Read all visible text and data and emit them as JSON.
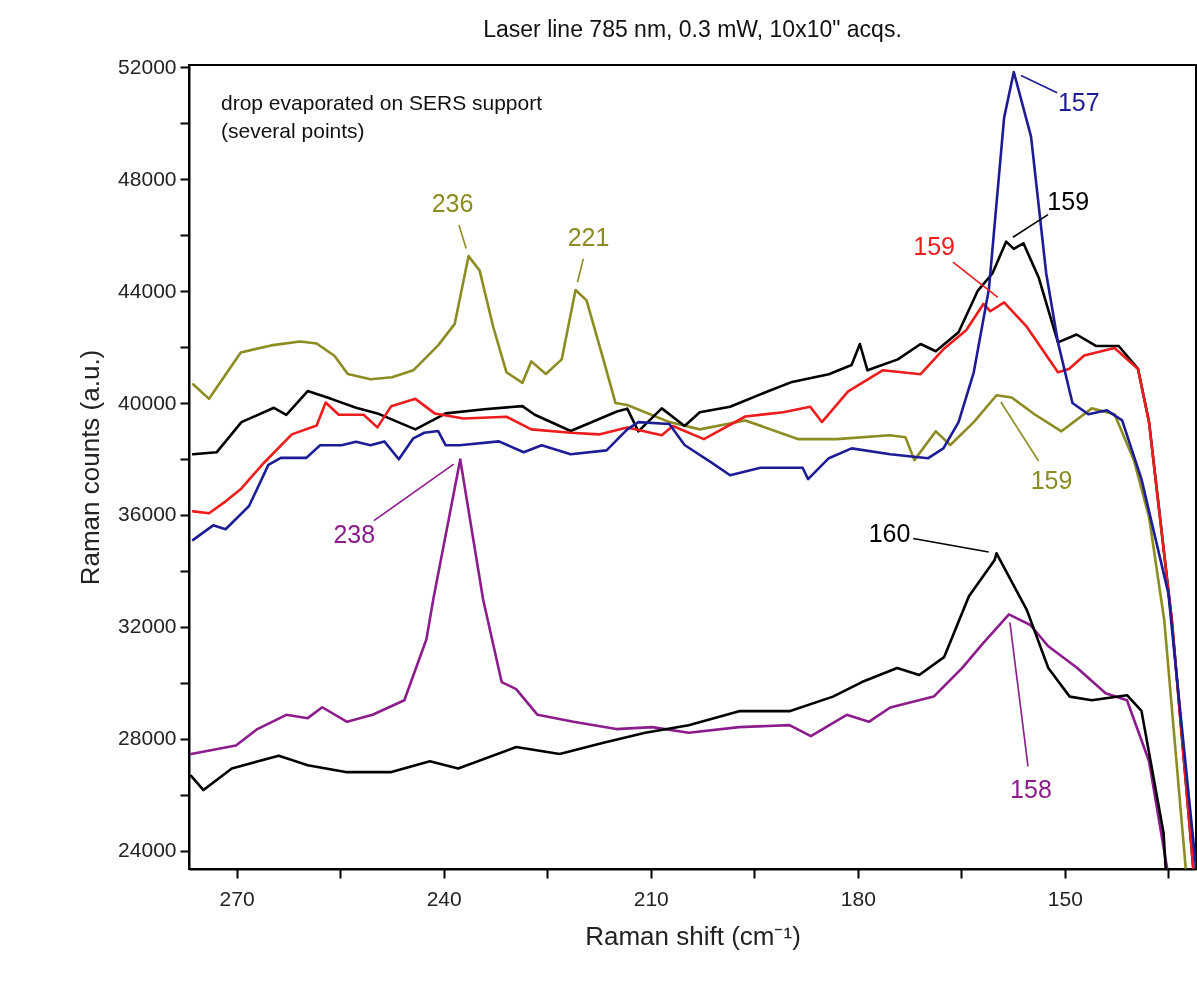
{
  "chart_data": {
    "type": "line",
    "title": "Laser line 785 nm, 0.3 mW, 10x10\" acqs.",
    "xlabel": "Raman shift (cm⁻¹)",
    "ylabel": "Raman counts (a.u.)",
    "xlim": [
      276.9,
      131.0
    ],
    "ylim": [
      23350,
      52080
    ],
    "xticks": [
      270,
      {
        "value": 255,
        "label": null
      },
      240,
      {
        "value": 225,
        "label": null
      },
      210,
      {
        "value": 195,
        "label": null
      },
      180,
      {
        "value": 165,
        "label": null
      },
      150,
      {
        "value": 135,
        "label": null
      }
    ],
    "yticks": [
      24000,
      {
        "value": 26000,
        "label": null
      },
      28000,
      {
        "value": 30000,
        "label": null
      },
      32000,
      {
        "value": 34000,
        "label": null
      },
      36000,
      {
        "value": 38000,
        "label": null
      },
      40000,
      {
        "value": 42000,
        "label": null
      },
      44000,
      {
        "value": 46000,
        "label": null
      },
      48000,
      {
        "value": 50000,
        "label": null
      },
      52000
    ],
    "series": [
      {
        "color": "#8c8c22",
        "x": [
          276.3,
          274,
          269.4,
          265,
          260.8,
          258.4,
          255.8,
          253.9,
          250.6,
          247.5,
          244.4,
          240.8,
          238.4,
          236.4,
          234.8,
          232.8,
          230.9,
          228.6,
          227.3,
          225.2,
          222.9,
          220.9,
          219.3,
          217,
          215.1,
          213.4,
          207.3,
          202.9,
          196.3,
          188.6,
          183.1,
          175.4,
          173.1,
          171.8,
          168.7,
          166.6,
          163.2,
          159.9,
          157.7,
          154.4,
          150.5,
          146.1,
          142.8,
          140,
          137.8,
          135.6,
          132.5
        ],
        "values": [
          40670,
          40150,
          41810,
          42060,
          42200,
          42130,
          41680,
          41040,
          40850,
          40920,
          41170,
          42060,
          42830,
          45250,
          44740,
          42700,
          41100,
          40720,
          41490,
          41040,
          41560,
          44040,
          43670,
          41680,
          40000,
          39930,
          39320,
          39060,
          39380,
          38710,
          38710,
          38850,
          38780,
          37960,
          38990,
          38500,
          39320,
          40280,
          40200,
          39600,
          38990,
          39810,
          39600,
          37960,
          35920,
          32240,
          23400
        ]
      },
      {
        "color": "#000000",
        "x": [
          276.3,
          272.9,
          269.3,
          264.6,
          262.8,
          259.7,
          256.3,
          252.7,
          249.6,
          244.1,
          239.7,
          234.1,
          228.6,
          226.8,
          221.6,
          214.9,
          213.4,
          211.8,
          208.4,
          205.1,
          202.9,
          198.5,
          193,
          189.7,
          184.2,
          180.9,
          179.7,
          178.6,
          174.2,
          170.9,
          168.7,
          165.4,
          162.6,
          160.5,
          158.5,
          157.4,
          156,
          153.8,
          151,
          148.3,
          145.5,
          142.2,
          139.4,
          137.8,
          134.5,
          131.4
        ],
        "values": [
          38170,
          38240,
          39320,
          39830,
          39580,
          40430,
          40150,
          39830,
          39630,
          39060,
          39630,
          39780,
          39890,
          39580,
          39000,
          39700,
          39800,
          38990,
          39810,
          39180,
          39670,
          39870,
          40420,
          40740,
          41030,
          41360,
          42110,
          41170,
          41560,
          42110,
          41850,
          42530,
          44020,
          44630,
          45770,
          45510,
          45710,
          44490,
          42170,
          42450,
          42040,
          42040,
          41220,
          39320,
          32240,
          23400
        ]
      },
      {
        "color": "#ee1c1c",
        "x": [
          276.3,
          274,
          271.8,
          269.3,
          266.1,
          262,
          258.4,
          257.1,
          255.2,
          251.6,
          249.6,
          247.6,
          244.1,
          241.3,
          237.1,
          230.9,
          227.3,
          221.6,
          217.5,
          213.4,
          208.4,
          206.8,
          202.3,
          196.3,
          190.8,
          186.9,
          185.2,
          181.4,
          176.4,
          170.9,
          167.6,
          164.3,
          161.8,
          160.8,
          158.8,
          155.5,
          151,
          149.4,
          147.2,
          142.8,
          139.4,
          137.8,
          134.5,
          131.4
        ],
        "values": [
          36130,
          36060,
          36450,
          36950,
          37850,
          38880,
          39200,
          40020,
          39580,
          39580,
          39130,
          39890,
          40150,
          39630,
          39450,
          39510,
          39060,
          38940,
          38880,
          39130,
          38850,
          39180,
          38710,
          39520,
          39670,
          39870,
          39320,
          40420,
          41170,
          41030,
          41920,
          42600,
          43540,
          43280,
          43600,
          42720,
          41100,
          41220,
          41700,
          41970,
          41220,
          39300,
          32200,
          23400
        ]
      },
      {
        "color": "#1c1c96",
        "x": [
          276.3,
          273.4,
          271.6,
          268.2,
          265.4,
          263.6,
          259.9,
          257.9,
          254.8,
          252.7,
          250.6,
          248.6,
          246.5,
          244.4,
          242.8,
          240.8,
          239.7,
          237.7,
          232,
          228.4,
          225.8,
          221.6,
          216.4,
          213.4,
          211.8,
          207.3,
          205.1,
          201.3,
          198.5,
          194.1,
          188,
          187.2,
          184.2,
          180.9,
          175.3,
          172.6,
          169.8,
          167.6,
          165.4,
          163.2,
          161,
          158.8,
          157.4,
          154.9,
          152.7,
          151,
          148.9,
          146.6,
          143.9,
          141.7,
          138.9,
          135,
          131.0
        ],
        "values": [
          35110,
          35630,
          35490,
          36320,
          37790,
          38040,
          38040,
          38490,
          38490,
          38620,
          38490,
          38630,
          37990,
          38740,
          38940,
          39000,
          38490,
          38490,
          38630,
          38240,
          38490,
          38170,
          38310,
          39060,
          39320,
          39250,
          38500,
          37890,
          37420,
          37690,
          37690,
          37280,
          38030,
          38380,
          38170,
          38100,
          38030,
          38380,
          39320,
          41100,
          44080,
          50200,
          51830,
          49520,
          44630,
          42170,
          40000,
          39600,
          39740,
          39380,
          37280,
          33200,
          23400
        ]
      },
      {
        "color": "#8c1c8c",
        "x": [
          276.6,
          270.1,
          267,
          262.8,
          259.7,
          257.6,
          254,
          250.3,
          245.7,
          242.5,
          241.5,
          237.6,
          234.3,
          231.6,
          229.5,
          226.4,
          221.2,
          215,
          209.8,
          204.5,
          197.2,
          189.9,
          186.8,
          181.6,
          178.4,
          175.3,
          169,
          164.9,
          161.8,
          158.1,
          155,
          152.4,
          148.2,
          144.1,
          141,
          137.8,
          135.2
        ],
        "values": [
          27460,
          27760,
          28350,
          28860,
          28740,
          29130,
          28610,
          28860,
          29380,
          31560,
          33000,
          37980,
          33000,
          30030,
          29780,
          28860,
          28610,
          28350,
          28420,
          28220,
          28420,
          28490,
          28100,
          28860,
          28610,
          29120,
          29510,
          30530,
          31430,
          32450,
          32070,
          31310,
          30530,
          29630,
          29380,
          27200,
          23400
        ]
      },
      {
        "color": "#000000",
        "x": [
          276.6,
          274.8,
          270.7,
          263.9,
          259.7,
          254,
          247.7,
          242,
          237.9,
          229.5,
          223.2,
          217,
          210.8,
          204.5,
          197.2,
          189.9,
          183.6,
          179.4,
          174.3,
          171.1,
          167.5,
          163.9,
          160.2,
          159.9,
          155.5,
          152.4,
          149.3,
          146.1,
          141,
          138.9,
          135.7,
          135.4
        ],
        "values": [
          26680,
          26170,
          26940,
          27400,
          27060,
          26810,
          26810,
          27200,
          26940,
          27710,
          27460,
          27850,
          28220,
          28490,
          28990,
          28990,
          29510,
          30030,
          30530,
          30280,
          30920,
          33100,
          34380,
          34630,
          32600,
          30530,
          29510,
          29380,
          29560,
          29000,
          24640,
          23400
        ]
      }
    ],
    "annotations": [
      "drop evaporated on SERS support\n(several points)",
      {
        "text": "236",
        "x": 236.4,
        "y": 45250
      },
      {
        "text": "221",
        "x": 220.9,
        "y": 44040
      },
      {
        "text": "157",
        "x": 157.4,
        "y": 51830
      },
      {
        "text": "159",
        "x": 158.5,
        "y": 45770
      },
      {
        "text": "159",
        "x": 158.8,
        "y": 43600
      },
      {
        "text": "159",
        "x": 159.9,
        "y": 40280
      },
      {
        "text": "238",
        "x": 237.6,
        "y": 37980
      },
      {
        "text": "160",
        "x": 159.9,
        "y": 34630
      },
      {
        "text": "158",
        "x": 158.1,
        "y": 32450
      }
    ]
  }
}
